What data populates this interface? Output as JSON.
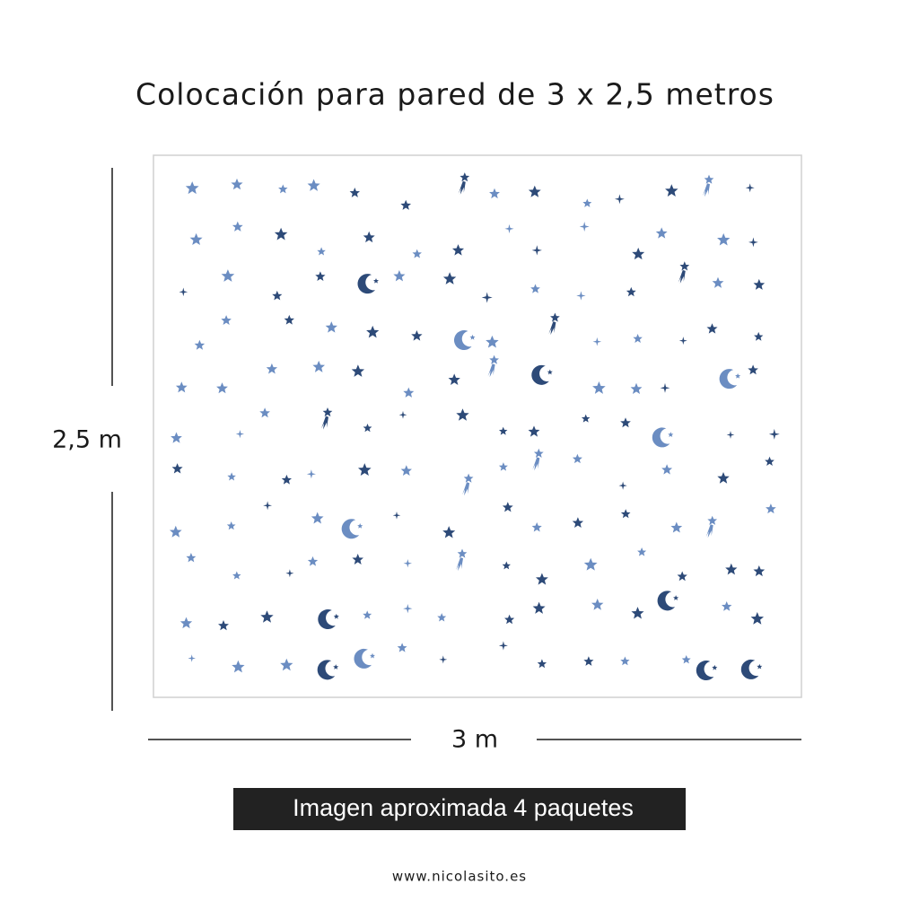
{
  "title": "Colocación para pared de 3 x 2,5 metros",
  "height_label": "2,5 m",
  "width_label": "3 m",
  "banner": "Imagen aproximada 4 paquetes",
  "website": "www.nicolasito.es"
}
